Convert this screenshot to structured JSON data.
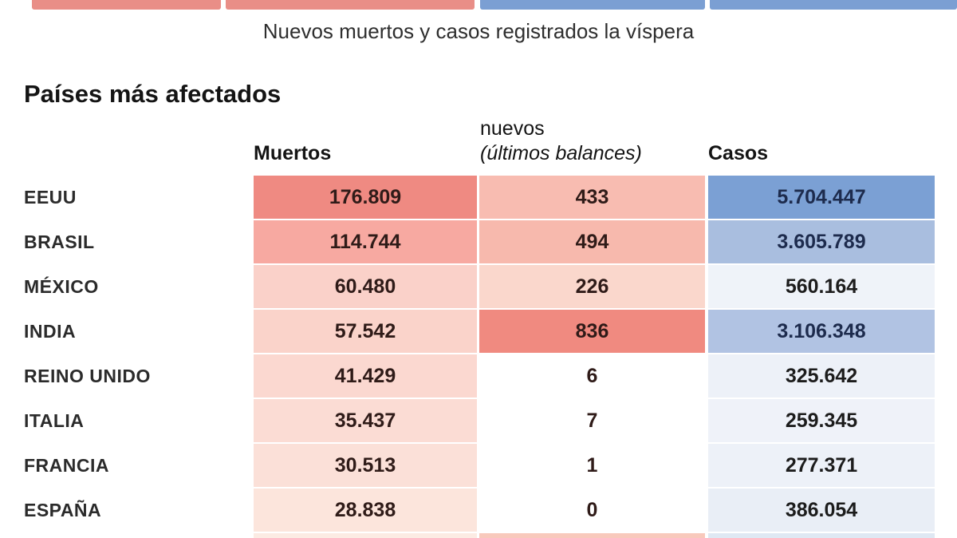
{
  "colors": {
    "red_bar": "#e98e87",
    "blue_bar": "#7b9fd3",
    "deaths_text": "#2f1b18",
    "new_text": "#2f1b18"
  },
  "header": {
    "subtitle": "Nuevos muertos y casos registrados la víspera"
  },
  "section": {
    "title": "Países más afectados",
    "col_deaths": "Muertos",
    "col_new_line1": "nuevos",
    "col_new_line2": "(últimos balances)",
    "col_cases": "Casos"
  },
  "table": {
    "rows": [
      {
        "country": "EEUU",
        "muertos": "176.809",
        "nuevos": "433",
        "casos": "5.704.447",
        "muertos_bg": "#ef8a82",
        "nuevos_bg": "#f8bcb1",
        "casos_bg": "#7ba0d4",
        "casos_fg": "#1d2b4d"
      },
      {
        "country": "BRASIL",
        "muertos": "114.744",
        "nuevos": "494",
        "casos": "3.605.789",
        "muertos_bg": "#f7a9a1",
        "nuevos_bg": "#f7b9ad",
        "casos_bg": "#a9bedf",
        "casos_fg": "#1d2b4d"
      },
      {
        "country": "MÉXICO",
        "muertos": "60.480",
        "nuevos": "226",
        "casos": "560.164",
        "muertos_bg": "#fad1c9",
        "nuevos_bg": "#fad7cc",
        "casos_bg": "#eff3f9",
        "casos_fg": "#1c1c1c"
      },
      {
        "country": "INDIA",
        "muertos": "57.542",
        "nuevos": "836",
        "casos": "3.106.348",
        "muertos_bg": "#fad3ca",
        "nuevos_bg": "#f08a80",
        "casos_bg": "#b1c3e3",
        "casos_fg": "#1d2b4d"
      },
      {
        "country": "REINO UNIDO",
        "muertos": "41.429",
        "nuevos": "6",
        "casos": "325.642",
        "muertos_bg": "#fbd8d0",
        "nuevos_bg": "#ffffff",
        "casos_bg": "#edf1f8",
        "casos_fg": "#1c1c1c"
      },
      {
        "country": "ITALIA",
        "muertos": "35.437",
        "nuevos": "7",
        "casos": "259.345",
        "muertos_bg": "#fbdcd4",
        "nuevos_bg": "#ffffff",
        "casos_bg": "#eff2f9",
        "casos_fg": "#1c1c1c"
      },
      {
        "country": "FRANCIA",
        "muertos": "30.513",
        "nuevos": "1",
        "casos": "277.371",
        "muertos_bg": "#fbe0d8",
        "nuevos_bg": "#ffffff",
        "casos_bg": "#edf1f8",
        "casos_fg": "#1c1c1c"
      },
      {
        "country": "ESPAÑA",
        "muertos": "28.838",
        "nuevos": "0",
        "casos": "386.054",
        "muertos_bg": "#fce5dc",
        "nuevos_bg": "#ffffff",
        "casos_bg": "#e9eef6",
        "casos_fg": "#1c1c1c"
      }
    ],
    "partial_row": {
      "muertos_bg": "#fcebe3",
      "nuevos_bg": "#f8c9bc",
      "casos_bg": "#dfe8f3"
    }
  },
  "chart_data": {
    "type": "table",
    "title": "Países más afectados",
    "subtitle": "Nuevos muertos y casos registrados la víspera",
    "columns": [
      "País",
      "Muertos",
      "nuevos (últimos balances)",
      "Casos"
    ],
    "rows": [
      {
        "pais": "EEUU",
        "muertos": 176809,
        "nuevos": 433,
        "casos": 5704447
      },
      {
        "pais": "BRASIL",
        "muertos": 114744,
        "nuevos": 494,
        "casos": 3605789
      },
      {
        "pais": "MÉXICO",
        "muertos": 60480,
        "nuevos": 226,
        "casos": 560164
      },
      {
        "pais": "INDIA",
        "muertos": 57542,
        "nuevos": 836,
        "casos": 3106348
      },
      {
        "pais": "REINO UNIDO",
        "muertos": 41429,
        "nuevos": 6,
        "casos": 325642
      },
      {
        "pais": "ITALIA",
        "muertos": 35437,
        "nuevos": 7,
        "casos": 259345
      },
      {
        "pais": "FRANCIA",
        "muertos": 30513,
        "nuevos": 1,
        "casos": 277371
      },
      {
        "pais": "ESPAÑA",
        "muertos": 28838,
        "nuevos": 0,
        "casos": 386054
      }
    ],
    "layout_hints": {
      "heatmap": "red shading intensity proportional to deaths / new deaths; blue shading intensity proportional to cases",
      "number_format": "dot as thousands separator"
    }
  }
}
